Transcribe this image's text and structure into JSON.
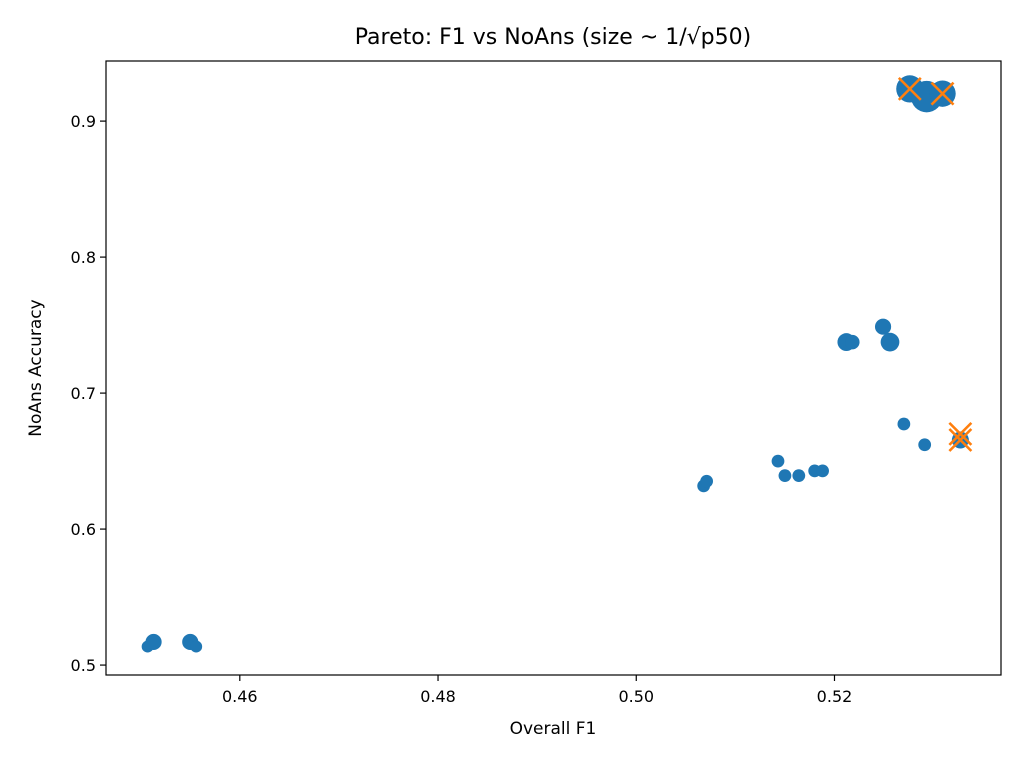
{
  "chart_data": {
    "type": "scatter",
    "title": "Pareto: F1 vs NoAns (size ~ 1/√p50)",
    "xlabel": "Overall F1",
    "ylabel": "NoAns Accuracy",
    "xlim": [
      0.4465,
      0.5368
    ],
    "ylim": [
      0.4927,
      0.9442
    ],
    "xticks": [
      0.46,
      0.48,
      0.5,
      0.52
    ],
    "xtick_labels": [
      "0.46",
      "0.48",
      "0.50",
      "0.52"
    ],
    "yticks": [
      0.5,
      0.6,
      0.7,
      0.8,
      0.9
    ],
    "ytick_labels": [
      "0.5",
      "0.6",
      "0.7",
      "0.8",
      "0.9"
    ],
    "grid": false,
    "legend": "none",
    "colors": {
      "points": "#1f77b4",
      "pareto": "#ff7f0e"
    },
    "series": [
      {
        "marker": "circle",
        "color": "#1f77b4",
        "points": [
          {
            "x": 0.4507,
            "y": 0.5136,
            "size_rel": 0.7
          },
          {
            "x": 0.4513,
            "y": 0.517,
            "size_rel": 0.95
          },
          {
            "x": 0.455,
            "y": 0.517,
            "size_rel": 0.95
          },
          {
            "x": 0.4556,
            "y": 0.5136,
            "size_rel": 0.7
          },
          {
            "x": 0.5068,
            "y": 0.6318,
            "size_rel": 0.75
          },
          {
            "x": 0.5071,
            "y": 0.6352,
            "size_rel": 0.75
          },
          {
            "x": 0.5143,
            "y": 0.65,
            "size_rel": 0.75
          },
          {
            "x": 0.515,
            "y": 0.6393,
            "size_rel": 0.75
          },
          {
            "x": 0.5164,
            "y": 0.6393,
            "size_rel": 0.75
          },
          {
            "x": 0.518,
            "y": 0.6428,
            "size_rel": 0.75
          },
          {
            "x": 0.5188,
            "y": 0.6428,
            "size_rel": 0.75
          },
          {
            "x": 0.5212,
            "y": 0.7375,
            "size_rel": 1.05
          },
          {
            "x": 0.5218,
            "y": 0.7375,
            "size_rel": 0.85
          },
          {
            "x": 0.5249,
            "y": 0.7488,
            "size_rel": 0.95
          },
          {
            "x": 0.5256,
            "y": 0.7375,
            "size_rel": 1.1
          },
          {
            "x": 0.527,
            "y": 0.6773,
            "size_rel": 0.75
          },
          {
            "x": 0.5291,
            "y": 0.662,
            "size_rel": 0.75
          },
          {
            "x": 0.5327,
            "y": 0.6655,
            "size_rel": 1.0
          },
          {
            "x": 0.5276,
            "y": 0.9237,
            "size_rel": 1.6
          },
          {
            "x": 0.5293,
            "y": 0.918,
            "size_rel": 1.85
          },
          {
            "x": 0.5309,
            "y": 0.9202,
            "size_rel": 1.55
          }
        ]
      },
      {
        "marker": "x",
        "color": "#ff7f0e",
        "points": [
          {
            "x": 0.5276,
            "y": 0.9237
          },
          {
            "x": 0.5309,
            "y": 0.9202
          },
          {
            "x": 0.5327,
            "y": 0.67
          },
          {
            "x": 0.5327,
            "y": 0.6655
          }
        ]
      }
    ]
  }
}
